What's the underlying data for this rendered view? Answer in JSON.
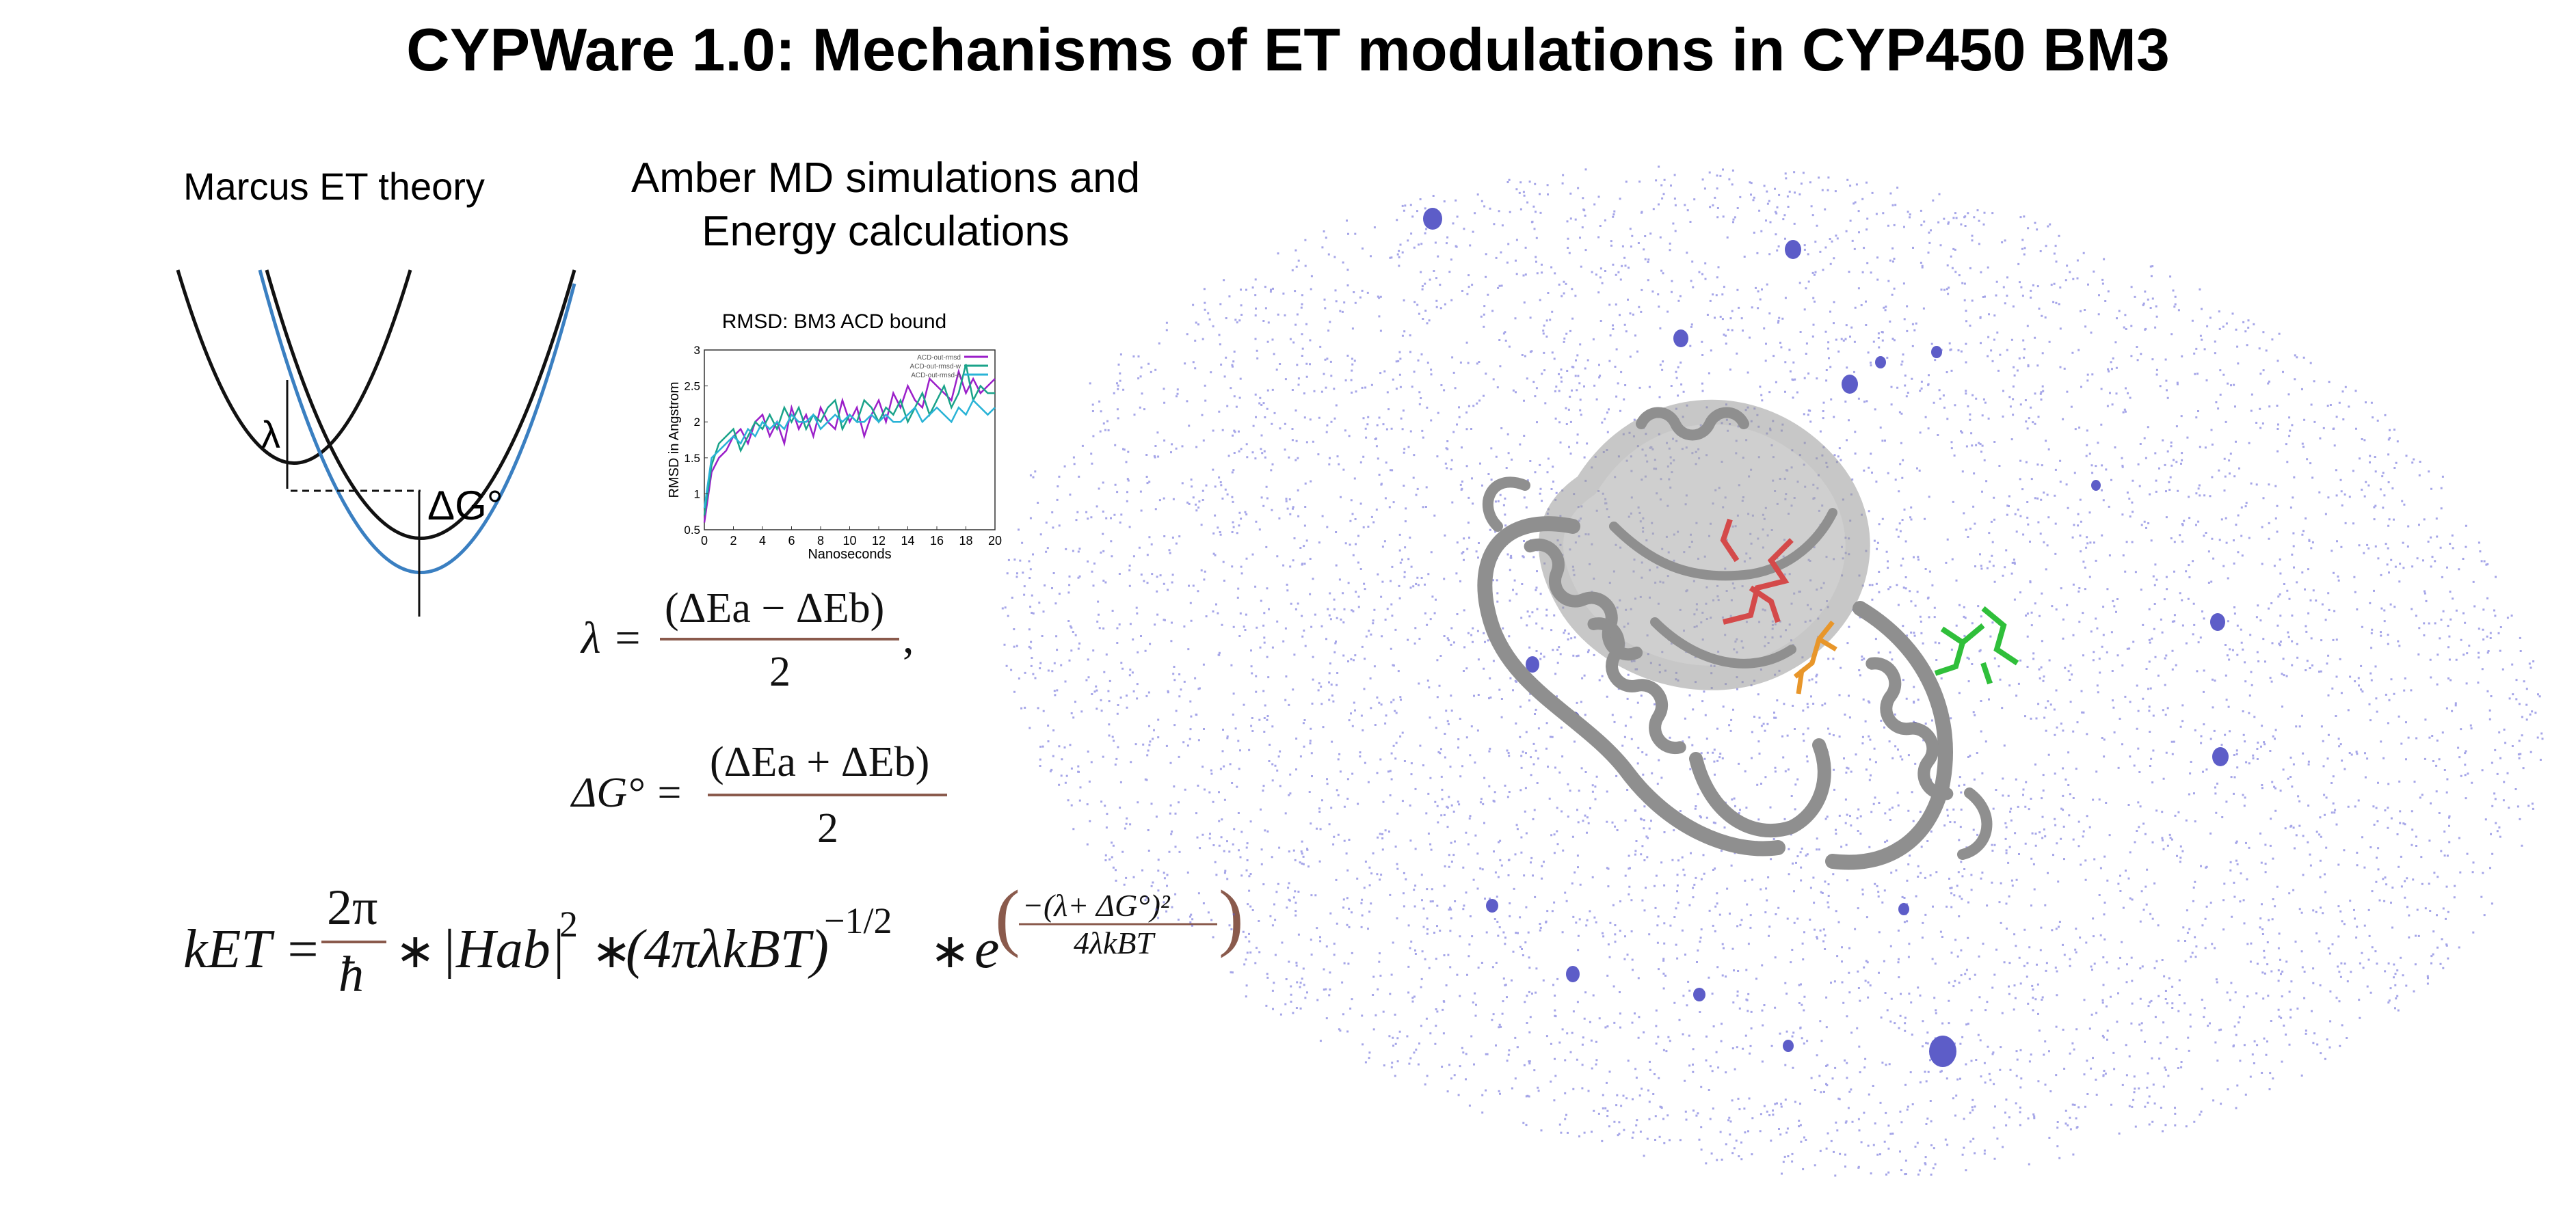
{
  "title": "CYPWare 1.0: Mechanisms of ET modulations in CYP450 BM3",
  "marcus": {
    "label": "Marcus ET theory",
    "lambda_label": "λ",
    "dg_label": "ΔG°"
  },
  "amber": {
    "line1": "Amber MD simulations and",
    "line2": "Energy calculations"
  },
  "chart_data": {
    "type": "line",
    "title": "RMSD: BM3 ACD bound",
    "xlabel": "Nanoseconds",
    "ylabel": "RMSD in Angstrom",
    "xlim": [
      0,
      20
    ],
    "ylim": [
      0.5,
      3
    ],
    "xticks": [
      "0",
      "2",
      "4",
      "6",
      "8",
      "10",
      "12",
      "14",
      "16",
      "18",
      "20"
    ],
    "yticks": [
      "0.5",
      "1",
      "1.5",
      "2",
      "2.5",
      "3"
    ],
    "legend": [
      "ACD-out-rmsd",
      "ACD-out-rmsd-w",
      "ACD-out-rmsd-o"
    ],
    "legend_position": "top-right",
    "series": [
      {
        "name": "ACD-out-rmsd",
        "color": "#9b1fc9",
        "x": [
          0,
          0.5,
          1,
          1.5,
          2,
          2.5,
          3,
          3.5,
          4,
          4.5,
          5,
          5.5,
          6,
          6.5,
          7,
          7.5,
          8,
          8.5,
          9,
          9.5,
          10,
          10.5,
          11,
          11.5,
          12,
          12.5,
          13,
          13.5,
          14,
          14.5,
          15,
          15.5,
          16,
          16.5,
          17,
          17.5,
          18,
          18.5,
          19,
          19.5,
          20
        ],
        "y": [
          0.6,
          1.3,
          1.5,
          1.6,
          1.8,
          1.9,
          1.7,
          2.0,
          2.1,
          1.8,
          2.0,
          1.7,
          2.2,
          1.9,
          2.1,
          1.8,
          2.2,
          2.0,
          1.9,
          2.3,
          2.0,
          2.2,
          1.8,
          2.1,
          2.3,
          2.0,
          2.4,
          2.2,
          2.5,
          2.3,
          2.2,
          2.6,
          2.5,
          2.4,
          2.3,
          2.7,
          2.4,
          2.6,
          2.4,
          2.5,
          2.6
        ]
      },
      {
        "name": "ACD-out-rmsd-w",
        "color": "#1aa38a",
        "x": [
          0,
          0.5,
          1,
          1.5,
          2,
          2.5,
          3,
          3.5,
          4,
          4.5,
          5,
          5.5,
          6,
          6.5,
          7,
          7.5,
          8,
          8.5,
          9,
          9.5,
          10,
          10.5,
          11,
          11.5,
          12,
          12.5,
          13,
          13.5,
          14,
          14.5,
          15,
          15.5,
          16,
          16.5,
          17,
          17.5,
          18,
          18.5,
          19,
          19.5,
          20
        ],
        "y": [
          0.7,
          1.4,
          1.7,
          1.8,
          1.9,
          1.6,
          1.8,
          2.0,
          1.9,
          2.1,
          1.9,
          2.2,
          2.0,
          2.2,
          1.9,
          2.1,
          2.0,
          2.2,
          2.3,
          1.9,
          2.1,
          2.0,
          2.3,
          2.2,
          2.0,
          2.2,
          2.1,
          2.3,
          2.0,
          2.2,
          2.4,
          2.1,
          2.3,
          2.5,
          2.2,
          2.4,
          2.8,
          2.3,
          2.5,
          2.4,
          2.4
        ]
      },
      {
        "name": "ACD-out-rmsd-o",
        "color": "#29b3d6",
        "x": [
          0,
          0.5,
          1,
          1.5,
          2,
          2.5,
          3,
          3.5,
          4,
          4.5,
          5,
          5.5,
          6,
          6.5,
          7,
          7.5,
          8,
          8.5,
          9,
          9.5,
          10,
          10.5,
          11,
          11.5,
          12,
          12.5,
          13,
          13.5,
          14,
          14.5,
          15,
          15.5,
          16,
          16.5,
          17,
          17.5,
          18,
          18.5,
          19,
          19.5,
          20
        ],
        "y": [
          0.8,
          1.5,
          1.6,
          1.7,
          1.8,
          1.7,
          1.9,
          1.8,
          2.0,
          1.9,
          2.0,
          1.9,
          2.1,
          2.0,
          2.0,
          2.1,
          1.9,
          2.0,
          2.1,
          2.0,
          2.1,
          2.0,
          2.0,
          2.1,
          2.0,
          2.1,
          2.0,
          2.0,
          2.1,
          2.2,
          2.0,
          2.1,
          2.2,
          2.1,
          2.0,
          2.2,
          2.1,
          2.3,
          2.2,
          2.1,
          2.2
        ]
      }
    ]
  },
  "equations": {
    "lambda_lhs": "λ =",
    "lambda_num": "(ΔEa − ΔEb)",
    "lambda_den": "2",
    "lambda_comma": ",",
    "dg_lhs": "ΔG° =",
    "dg_num": "(ΔEa + ΔEb)",
    "dg_den": "2",
    "ket_lhs": "kET =",
    "ket_frac_num": "2π",
    "ket_frac_den": "ħ",
    "ket_star1": "∗",
    "ket_hab": "|Hab|",
    "ket_hab_exp": "2",
    "ket_star2": "∗",
    "ket_paren": "(4πλkBT)",
    "ket_paren_exp": "−1/2",
    "ket_star3": "∗",
    "ket_e": "e",
    "ket_exp_num": "−(λ+ ΔG°)²",
    "ket_exp_den": "4λkBT"
  },
  "colors": {
    "curve_black": "#111111",
    "curve_blue": "#3a7fc1",
    "fraction_bar": "#8a5a4c",
    "water": "#5b5bd6",
    "protein": "#8f8f8f",
    "ligand_red": "#d44a4a",
    "ligand_orange": "#e8962a",
    "ligand_green": "#2fbf3a"
  }
}
